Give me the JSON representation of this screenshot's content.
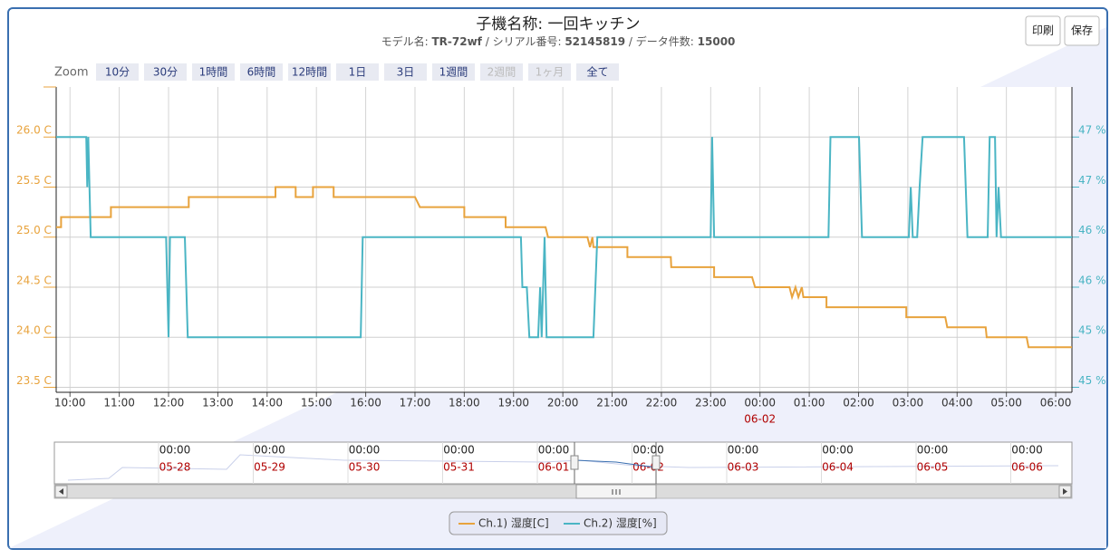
{
  "chart_data": {
    "type": "line",
    "title": "子機名称: 一回キッチン",
    "subtitle_parts": [
      {
        "label": "モデル名: ",
        "value": "TR-72wf"
      },
      {
        "label": " / シリアル番号: ",
        "value": "52145819"
      },
      {
        "label": " / データ件数: ",
        "value": "15000"
      }
    ],
    "buttons": [
      "印刷",
      "保存"
    ],
    "zoom": {
      "label": "Zoom",
      "options": [
        {
          "label": "10分",
          "disabled": false
        },
        {
          "label": "30分",
          "disabled": false
        },
        {
          "label": "1時間",
          "disabled": false
        },
        {
          "label": "6時間",
          "disabled": false
        },
        {
          "label": "12時間",
          "disabled": false
        },
        {
          "label": "1日",
          "disabled": false
        },
        {
          "label": "3日",
          "disabled": false
        },
        {
          "label": "1週間",
          "disabled": false
        },
        {
          "label": "2週間",
          "disabled": true
        },
        {
          "label": "1ヶ月",
          "disabled": true
        },
        {
          "label": "全て",
          "disabled": false
        }
      ]
    },
    "xlim": [
      9.72,
      30.33
    ],
    "xticks": [
      {
        "value": 10,
        "label": "10:00"
      },
      {
        "value": 11,
        "label": "11:00"
      },
      {
        "value": 12,
        "label": "12:00"
      },
      {
        "value": 13,
        "label": "13:00"
      },
      {
        "value": 14,
        "label": "14:00"
      },
      {
        "value": 15,
        "label": "15:00"
      },
      {
        "value": 16,
        "label": "16:00"
      },
      {
        "value": 17,
        "label": "17:00"
      },
      {
        "value": 18,
        "label": "18:00"
      },
      {
        "value": 19,
        "label": "19:00"
      },
      {
        "value": 20,
        "label": "20:00"
      },
      {
        "value": 21,
        "label": "21:00"
      },
      {
        "value": 22,
        "label": "22:00"
      },
      {
        "value": 23,
        "label": "23:00"
      },
      {
        "value": 24,
        "label": "00:00"
      },
      {
        "value": 25,
        "label": "01:00"
      },
      {
        "value": 26,
        "label": "02:00"
      },
      {
        "value": 27,
        "label": "03:00"
      },
      {
        "value": 28,
        "label": "04:00"
      },
      {
        "value": 29,
        "label": "05:00"
      },
      {
        "value": 30,
        "label": "06:00"
      }
    ],
    "date_marker": {
      "value": 24,
      "label": "06-02"
    },
    "ylim": [
      23.45,
      26.5
    ],
    "yticks": [
      {
        "value": 26.0,
        "label": "26.0 C"
      },
      {
        "value": 25.5,
        "label": "25.5 C"
      },
      {
        "value": 25.0,
        "label": "25.0 C"
      },
      {
        "value": 24.5,
        "label": "24.5 C"
      },
      {
        "value": 24.0,
        "label": "24.0 C"
      },
      {
        "value": 23.5,
        "label": "23.5 C"
      }
    ],
    "y2lim": [
      44.45,
      47.5
    ],
    "y2ticks": [
      {
        "value": 47.0,
        "label": "47 %"
      },
      {
        "value": 46.5,
        "label": "47 %"
      },
      {
        "value": 46.0,
        "label": "46 %"
      },
      {
        "value": 45.5,
        "label": "46 %"
      },
      {
        "value": 45.0,
        "label": "45 %"
      },
      {
        "value": 44.5,
        "label": "45 %"
      }
    ],
    "grid": true,
    "legend": "bottom",
    "series": [
      {
        "name": "Ch.1) 湿度[C]",
        "color": "#e8a33d",
        "x": [
          9.72,
          9.82,
          9.82,
          10.83,
          10.83,
          12.41,
          12.41,
          14.17,
          14.17,
          14.58,
          14.58,
          14.93,
          14.93,
          15.35,
          15.35,
          17.0,
          17.1,
          18.0,
          18.0,
          18.84,
          18.84,
          19.65,
          19.7,
          20.5,
          20.55,
          20.6,
          20.62,
          21.31,
          21.31,
          22.19,
          22.2,
          23.07,
          23.07,
          23.84,
          23.9,
          24.6,
          24.65,
          24.72,
          24.78,
          24.85,
          24.88,
          25.35,
          25.35,
          26.97,
          26.97,
          27.76,
          27.8,
          28.58,
          28.6,
          29.41,
          29.45,
          30.33
        ],
        "values": [
          25.1,
          25.1,
          25.2,
          25.2,
          25.3,
          25.3,
          25.4,
          25.4,
          25.5,
          25.5,
          25.4,
          25.4,
          25.5,
          25.5,
          25.4,
          25.4,
          25.3,
          25.3,
          25.2,
          25.2,
          25.1,
          25.1,
          25.0,
          25.0,
          24.9,
          25.0,
          24.9,
          24.9,
          24.8,
          24.8,
          24.7,
          24.7,
          24.6,
          24.6,
          24.5,
          24.5,
          24.4,
          24.5,
          24.4,
          24.5,
          24.4,
          24.4,
          24.3,
          24.3,
          24.2,
          24.2,
          24.1,
          24.1,
          24.0,
          24.0,
          23.9,
          23.9
        ]
      },
      {
        "name": "Ch.2) 湿度[%]",
        "color": "#4ab5c4",
        "axis": "y2",
        "x": [
          9.72,
          10.33,
          10.35,
          10.37,
          10.42,
          11.95,
          12.0,
          12.03,
          12.33,
          12.39,
          15.9,
          15.94,
          19.15,
          19.18,
          19.27,
          19.32,
          19.5,
          19.54,
          19.57,
          19.63,
          19.67,
          20.62,
          20.7,
          23.0,
          23.03,
          23.07,
          25.39,
          25.43,
          26.01,
          26.07,
          27.02,
          27.06,
          27.1,
          27.19,
          27.24,
          27.3,
          28.14,
          28.21,
          28.62,
          28.66,
          28.77,
          28.8,
          28.84,
          28.89,
          30.33
        ],
        "values": [
          47,
          47,
          46.5,
          47,
          46,
          46,
          45,
          46,
          46,
          45,
          45,
          46,
          46,
          45.5,
          45.5,
          45,
          45,
          45.5,
          45,
          46,
          45,
          45,
          46,
          46,
          47,
          46,
          46,
          47,
          47,
          46,
          46,
          46.5,
          46,
          46,
          46.5,
          47,
          47,
          46,
          46,
          47,
          47,
          46,
          46.5,
          46,
          46
        ]
      }
    ],
    "navigator": {
      "ticks": [
        {
          "time": "00:00",
          "date": "05-28"
        },
        {
          "time": "00:00",
          "date": "05-29"
        },
        {
          "time": "00:00",
          "date": "05-30"
        },
        {
          "time": "00:00",
          "date": "05-31"
        },
        {
          "time": "00:00",
          "date": "06-01"
        },
        {
          "time": "00:00",
          "date": "06-02"
        },
        {
          "time": "00:00",
          "date": "06-03"
        },
        {
          "time": "00:00",
          "date": "06-04"
        },
        {
          "time": "00:00",
          "date": "06-05"
        },
        {
          "time": "00:00",
          "date": "06-06"
        }
      ]
    }
  }
}
